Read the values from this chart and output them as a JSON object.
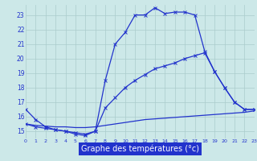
{
  "xlabel": "Graphe des températures (°c)",
  "bg_color": "#cce8e8",
  "grid_color": "#aacccc",
  "line_color": "#2233cc",
  "label_bg": "#2233cc",
  "xlim": [
    0,
    23
  ],
  "ylim": [
    14.5,
    23.7
  ],
  "yticks": [
    15,
    16,
    17,
    18,
    19,
    20,
    21,
    22,
    23
  ],
  "xticks": [
    0,
    1,
    2,
    3,
    4,
    5,
    6,
    7,
    8,
    9,
    10,
    11,
    12,
    13,
    14,
    15,
    16,
    17,
    18,
    19,
    20,
    21,
    22,
    23
  ],
  "curve1_x": [
    0,
    1,
    2,
    3,
    4,
    5,
    6,
    7,
    8,
    9,
    10,
    11,
    12,
    13,
    14,
    15,
    16,
    17,
    18,
    19,
    20,
    21,
    22,
    23
  ],
  "curve1_y": [
    16.5,
    15.8,
    15.3,
    15.1,
    15.0,
    14.8,
    14.7,
    15.0,
    18.5,
    21.0,
    21.8,
    23.0,
    23.0,
    23.5,
    23.1,
    23.2,
    23.2,
    23.0,
    20.5,
    19.1,
    18.0,
    17.0,
    16.5,
    16.5
  ],
  "curve2_x": [
    0,
    1,
    2,
    3,
    4,
    5,
    6,
    7,
    8,
    9,
    10,
    11,
    12,
    13,
    14,
    15,
    16,
    17,
    18,
    19,
    20,
    21,
    22,
    23
  ],
  "curve2_y": [
    15.5,
    15.3,
    15.2,
    15.1,
    15.0,
    14.9,
    14.8,
    15.0,
    16.6,
    17.3,
    18.0,
    18.5,
    18.9,
    19.3,
    19.5,
    19.7,
    20.0,
    20.2,
    20.4,
    19.1,
    18.0,
    17.0,
    16.5,
    16.5
  ],
  "curve3_x": [
    0,
    1,
    2,
    3,
    4,
    5,
    6,
    7,
    8,
    9,
    10,
    11,
    12,
    13,
    14,
    15,
    16,
    17,
    18,
    19,
    20,
    21,
    22,
    23
  ],
  "curve3_y": [
    15.5,
    15.4,
    15.35,
    15.3,
    15.3,
    15.25,
    15.25,
    15.3,
    15.4,
    15.5,
    15.6,
    15.7,
    15.8,
    15.85,
    15.9,
    15.95,
    16.0,
    16.05,
    16.1,
    16.15,
    16.2,
    16.25,
    16.3,
    16.4
  ],
  "lw": 0.9,
  "ms": 3.0
}
